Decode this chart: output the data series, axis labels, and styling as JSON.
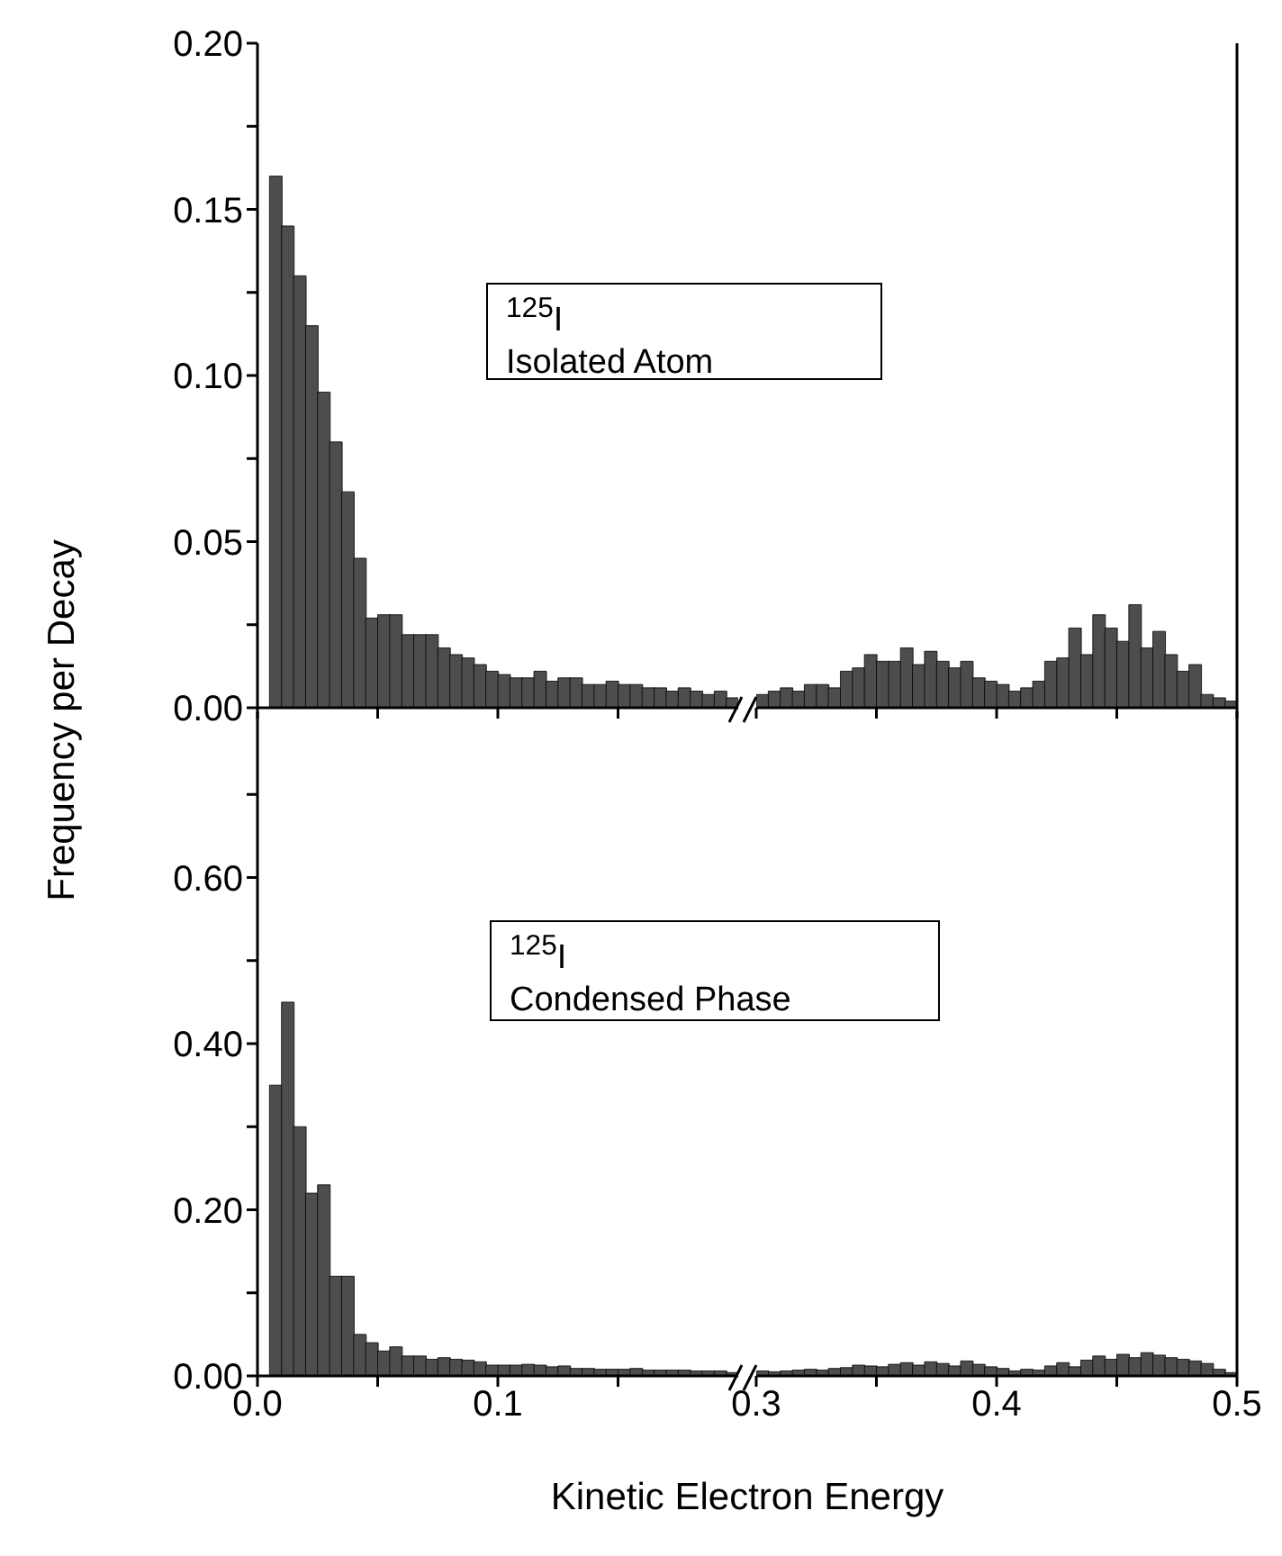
{
  "chart_data": [
    {
      "type": "histogram",
      "ylabel": "Frequency per Decay",
      "color": "#4d4d4d",
      "tick_labels": "y",
      "annotations": [
        "$^{125}$I",
        "Isolated Atom"
      ],
      "bins": [
        0.005,
        0.01,
        0.015,
        0.02,
        0.025,
        0.03,
        0.035,
        0.04,
        0.045,
        0.05,
        0.055,
        0.06,
        0.065,
        0.07,
        0.075,
        0.08,
        0.085,
        0.09,
        0.095,
        0.1,
        0.105,
        0.11,
        0.115,
        0.12,
        0.125,
        0.13,
        0.135,
        0.14,
        0.145,
        0.15,
        0.155,
        0.16,
        0.165,
        0.17,
        0.175,
        0.18,
        0.185,
        0.19,
        0.195,
        0.2
      ],
      "values": [
        0.16,
        0.145,
        0.13,
        0.115,
        0.095,
        0.08,
        0.065,
        0.045,
        0.027,
        0.028,
        0.028,
        0.022,
        0.022,
        0.022,
        0.018,
        0.016,
        0.015,
        0.013,
        0.011,
        0.01,
        0.009,
        0.009,
        0.011,
        0.008,
        0.009,
        0.009,
        0.007,
        0.007,
        0.008,
        0.007,
        0.007,
        0.006,
        0.006,
        0.005,
        0.006,
        0.005,
        0.004,
        0.005,
        0.003
      ],
      "xlim": [
        0,
        0.2
      ],
      "xticks": [
        {
          "value": 0,
          "label": null
        },
        {
          "value": 0.05,
          "label": null
        },
        {
          "value": 0.1,
          "label": null
        },
        {
          "value": 0.15,
          "label": null
        }
      ],
      "ylim": [
        0,
        0.2
      ],
      "yticks": [
        {
          "value": 0,
          "label": "0.00"
        },
        {
          "value": 0.025,
          "label": null
        },
        {
          "value": 0.05,
          "label": "0.05"
        },
        {
          "value": 0.075,
          "label": null
        },
        {
          "value": 0.1,
          "label": "0.10"
        },
        {
          "value": 0.125,
          "label": null
        },
        {
          "value": 0.15,
          "label": "0.15"
        },
        {
          "value": 0.175,
          "label": null
        },
        {
          "value": 0.2,
          "label": "0.20"
        }
      ]
    },
    {
      "type": "histogram",
      "color": "#4d4d4d",
      "tick_labels": false,
      "bins": [
        0.3,
        0.305,
        0.31,
        0.315,
        0.32,
        0.325,
        0.33,
        0.335,
        0.34,
        0.345,
        0.35,
        0.355,
        0.36,
        0.365,
        0.37,
        0.375,
        0.38,
        0.385,
        0.39,
        0.395,
        0.4,
        0.405,
        0.41,
        0.415,
        0.42,
        0.425,
        0.43,
        0.435,
        0.44,
        0.445,
        0.45,
        0.455,
        0.46,
        0.465,
        0.47,
        0.475,
        0.48,
        0.485,
        0.49,
        0.495,
        0.5
      ],
      "values": [
        0.004,
        0.005,
        0.006,
        0.005,
        0.007,
        0.007,
        0.006,
        0.011,
        0.012,
        0.016,
        0.014,
        0.014,
        0.018,
        0.013,
        0.017,
        0.014,
        0.012,
        0.014,
        0.009,
        0.008,
        0.007,
        0.005,
        0.006,
        0.008,
        0.014,
        0.015,
        0.024,
        0.016,
        0.028,
        0.024,
        0.02,
        0.031,
        0.018,
        0.023,
        0.016,
        0.011,
        0.013,
        0.004,
        0.003,
        0.002
      ],
      "xlim": [
        0.3,
        0.5
      ],
      "xticks": [
        {
          "value": 0.3,
          "label": null
        },
        {
          "value": 0.35,
          "label": null
        },
        {
          "value": 0.4,
          "label": null
        },
        {
          "value": 0.45,
          "label": null
        },
        {
          "value": 0.5,
          "label": null
        }
      ],
      "ylim": [
        0,
        0.2
      ]
    },
    {
      "type": "histogram",
      "xlabel": "Kinetic Electron Energy",
      "color": "#4d4d4d",
      "annotations": [
        "$^{125}$I",
        "Condensed Phase"
      ],
      "bins": [
        0.005,
        0.01,
        0.015,
        0.02,
        0.025,
        0.03,
        0.035,
        0.04,
        0.045,
        0.05,
        0.055,
        0.06,
        0.065,
        0.07,
        0.075,
        0.08,
        0.085,
        0.09,
        0.095,
        0.1,
        0.105,
        0.11,
        0.115,
        0.12,
        0.125,
        0.13,
        0.135,
        0.14,
        0.145,
        0.15,
        0.155,
        0.16,
        0.165,
        0.17,
        0.175,
        0.18,
        0.185,
        0.19,
        0.195,
        0.2
      ],
      "values": [
        0.35,
        0.45,
        0.3,
        0.22,
        0.23,
        0.12,
        0.12,
        0.05,
        0.04,
        0.03,
        0.035,
        0.024,
        0.024,
        0.02,
        0.022,
        0.02,
        0.019,
        0.017,
        0.013,
        0.013,
        0.013,
        0.014,
        0.013,
        0.011,
        0.012,
        0.009,
        0.009,
        0.008,
        0.008,
        0.008,
        0.009,
        0.007,
        0.007,
        0.007,
        0.007,
        0.006,
        0.006,
        0.006,
        0.004
      ],
      "xlim": [
        0,
        0.2
      ],
      "xticks": [
        {
          "value": 0,
          "label": "0.0"
        },
        {
          "value": 0.05,
          "label": null
        },
        {
          "value": 0.1,
          "label": "0.1"
        },
        {
          "value": 0.15,
          "label": null
        }
      ],
      "ylim": [
        0,
        0.8
      ],
      "yticks": [
        {
          "value": 0,
          "label": "0.00"
        },
        {
          "value": 0.1,
          "label": null
        },
        {
          "value": 0.2,
          "label": "0.20"
        },
        {
          "value": 0.3,
          "label": null
        },
        {
          "value": 0.4,
          "label": "0.40"
        },
        {
          "value": 0.5,
          "label": null
        },
        {
          "value": 0.6,
          "label": "0.60"
        },
        {
          "value": 0.7,
          "label": null
        }
      ]
    },
    {
      "type": "histogram",
      "color": "#4d4d4d",
      "tick_labels": "x",
      "bins": [
        0.3,
        0.305,
        0.31,
        0.315,
        0.32,
        0.325,
        0.33,
        0.335,
        0.34,
        0.345,
        0.35,
        0.355,
        0.36,
        0.365,
        0.37,
        0.375,
        0.38,
        0.385,
        0.39,
        0.395,
        0.4,
        0.405,
        0.41,
        0.415,
        0.42,
        0.425,
        0.43,
        0.435,
        0.44,
        0.445,
        0.45,
        0.455,
        0.46,
        0.465,
        0.47,
        0.475,
        0.48,
        0.485,
        0.49,
        0.495,
        0.5
      ],
      "values": [
        0.006,
        0.005,
        0.006,
        0.007,
        0.008,
        0.007,
        0.009,
        0.01,
        0.013,
        0.012,
        0.011,
        0.014,
        0.016,
        0.013,
        0.017,
        0.015,
        0.012,
        0.018,
        0.014,
        0.011,
        0.009,
        0.006,
        0.008,
        0.007,
        0.012,
        0.016,
        0.011,
        0.019,
        0.024,
        0.02,
        0.026,
        0.022,
        0.028,
        0.025,
        0.022,
        0.02,
        0.018,
        0.015,
        0.008,
        0.004
      ],
      "xlim": [
        0.3,
        0.5
      ],
      "xticks": [
        {
          "value": 0.3,
          "label": "0.3"
        },
        {
          "value": 0.35,
          "label": null
        },
        {
          "value": 0.4,
          "label": "0.4"
        },
        {
          "value": 0.45,
          "label": null
        },
        {
          "value": 0.5,
          "label": "0.5"
        }
      ],
      "ylim": [
        0,
        0.8
      ]
    }
  ]
}
